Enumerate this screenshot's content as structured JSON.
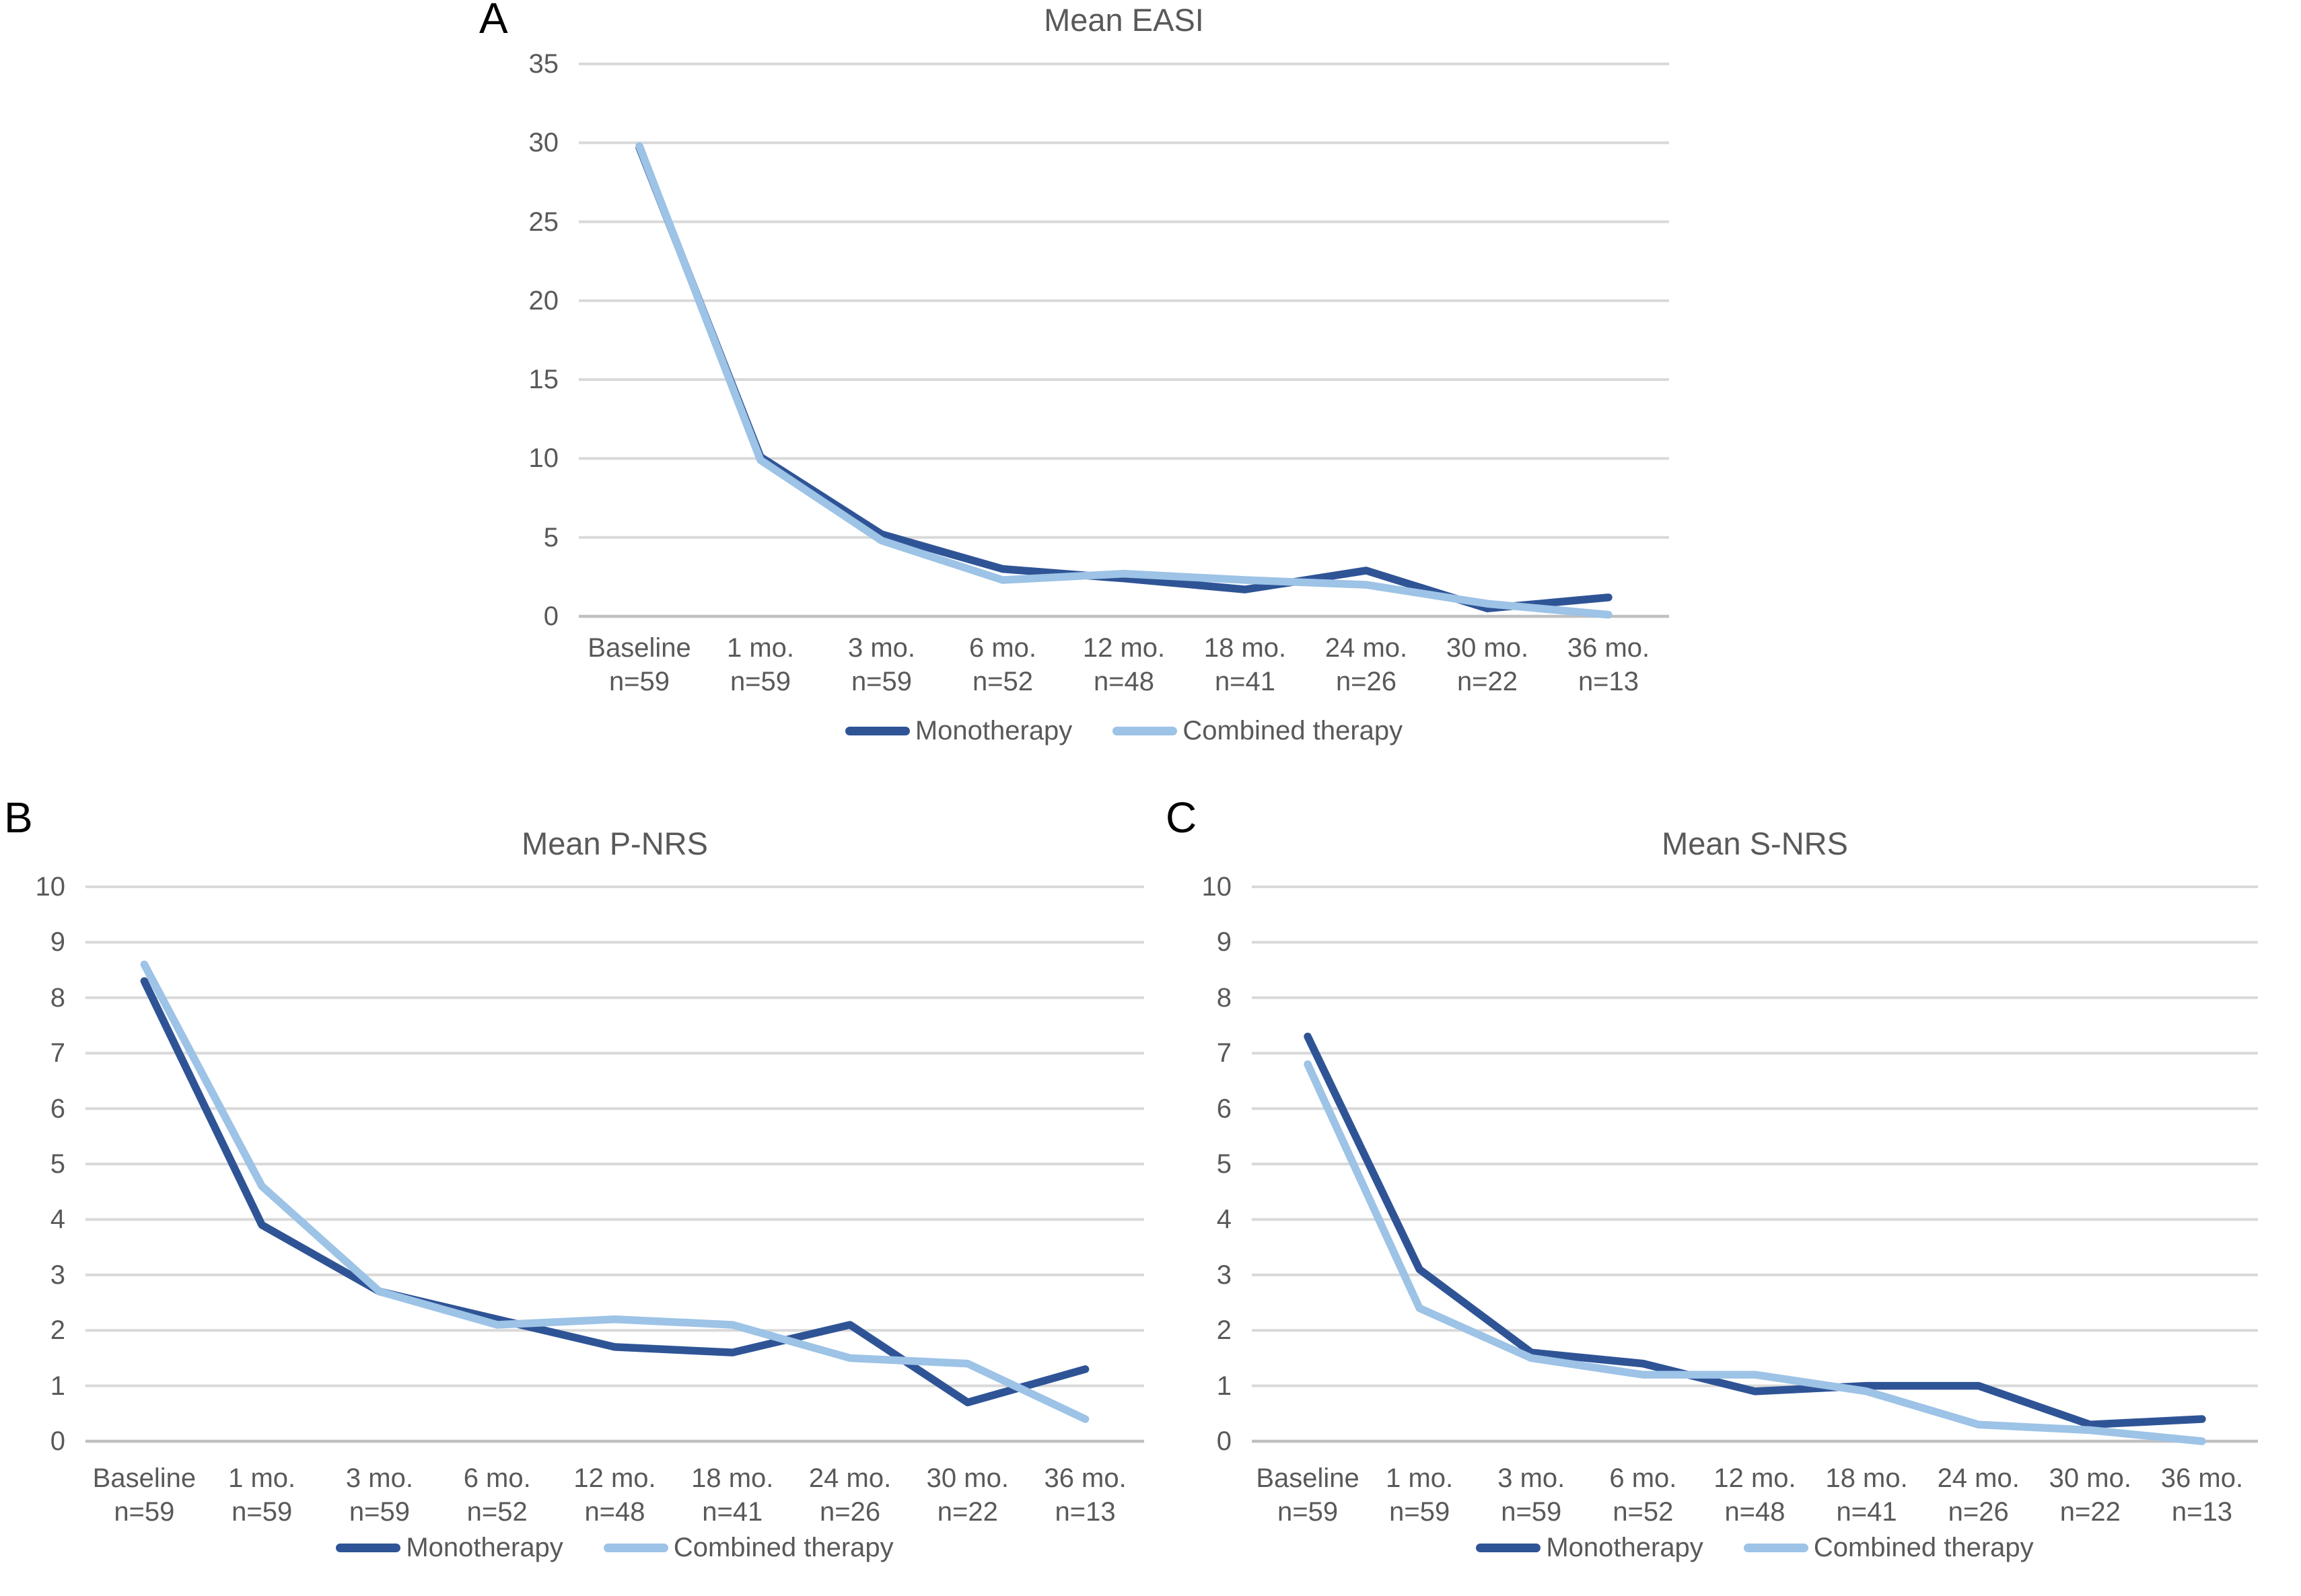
{
  "figure": {
    "background": "#ffffff",
    "description_visible_panels": [
      "A",
      "B",
      "C"
    ]
  },
  "colors": {
    "monotherapy_line": "#2F5496",
    "combined_therapy_line": "#9DC3E6",
    "text_gray": "#595959",
    "gridline": "#D9D9D9",
    "axis_line": "#C0C0C0",
    "panel_letter": "#000000"
  },
  "chart_data": [
    {
      "type": "line",
      "panel_letter": "A",
      "title": "Mean EASI",
      "ylim": [
        0,
        35
      ],
      "ytick": 5,
      "grid": true,
      "legend_position": "bottom",
      "categories": [
        {
          "label": "Baseline",
          "n": "n=59"
        },
        {
          "label": "1 mo.",
          "n": "n=59"
        },
        {
          "label": "3 mo.",
          "n": "n=59"
        },
        {
          "label": "6 mo.",
          "n": "n=52"
        },
        {
          "label": "12 mo.",
          "n": "n=48"
        },
        {
          "label": "18 mo.",
          "n": "n=41"
        },
        {
          "label": "24 mo.",
          "n": "n=26"
        },
        {
          "label": "30 mo.",
          "n": "n=22"
        },
        {
          "label": "36 mo.",
          "n": "n=13"
        }
      ],
      "series": [
        {
          "name": "Monotherapy",
          "color": "#2F5496",
          "values": [
            29.7,
            10.1,
            5.2,
            3.0,
            2.4,
            1.7,
            2.9,
            0.5,
            1.2
          ]
        },
        {
          "name": "Combined therapy",
          "color": "#9DC3E6",
          "values": [
            29.8,
            9.9,
            4.8,
            2.3,
            2.7,
            2.3,
            2.0,
            0.8,
            0.1
          ]
        }
      ]
    },
    {
      "type": "line",
      "panel_letter": "B",
      "title": "Mean P-NRS",
      "ylim": [
        0,
        10
      ],
      "ytick": 1,
      "grid": true,
      "legend_position": "bottom",
      "categories": [
        {
          "label": "Baseline",
          "n": "n=59"
        },
        {
          "label": "1 mo.",
          "n": "n=59"
        },
        {
          "label": "3 mo.",
          "n": "n=59"
        },
        {
          "label": "6 mo.",
          "n": "n=52"
        },
        {
          "label": "12 mo.",
          "n": "n=48"
        },
        {
          "label": "18 mo.",
          "n": "n=41"
        },
        {
          "label": "24 mo.",
          "n": "n=26"
        },
        {
          "label": "30 mo.",
          "n": "n=22"
        },
        {
          "label": "36 mo.",
          "n": "n=13"
        }
      ],
      "series": [
        {
          "name": "Monotherapy",
          "color": "#2F5496",
          "values": [
            8.3,
            3.9,
            2.7,
            2.2,
            1.7,
            1.6,
            2.1,
            0.7,
            1.3
          ]
        },
        {
          "name": "Combined therapy",
          "color": "#9DC3E6",
          "values": [
            8.6,
            4.6,
            2.7,
            2.1,
            2.2,
            2.1,
            1.5,
            1.4,
            0.4
          ]
        }
      ]
    },
    {
      "type": "line",
      "panel_letter": "C",
      "title": "Mean S-NRS",
      "ylim": [
        0,
        10
      ],
      "ytick": 1,
      "grid": true,
      "legend_position": "bottom",
      "categories": [
        {
          "label": "Baseline",
          "n": "n=59"
        },
        {
          "label": "1 mo.",
          "n": "n=59"
        },
        {
          "label": "3 mo.",
          "n": "n=59"
        },
        {
          "label": "6 mo.",
          "n": "n=52"
        },
        {
          "label": "12 mo.",
          "n": "n=48"
        },
        {
          "label": "18 mo.",
          "n": "n=41"
        },
        {
          "label": "24 mo.",
          "n": "n=26"
        },
        {
          "label": "30 mo.",
          "n": "n=22"
        },
        {
          "label": "36 mo.",
          "n": "n=13"
        }
      ],
      "series": [
        {
          "name": "Monotherapy",
          "color": "#2F5496",
          "values": [
            7.3,
            3.1,
            1.6,
            1.4,
            0.9,
            1.0,
            1.0,
            0.3,
            0.4
          ]
        },
        {
          "name": "Combined therapy",
          "color": "#9DC3E6",
          "values": [
            6.8,
            2.4,
            1.5,
            1.2,
            1.2,
            0.9,
            0.3,
            0.2,
            0.0
          ]
        }
      ]
    }
  ]
}
